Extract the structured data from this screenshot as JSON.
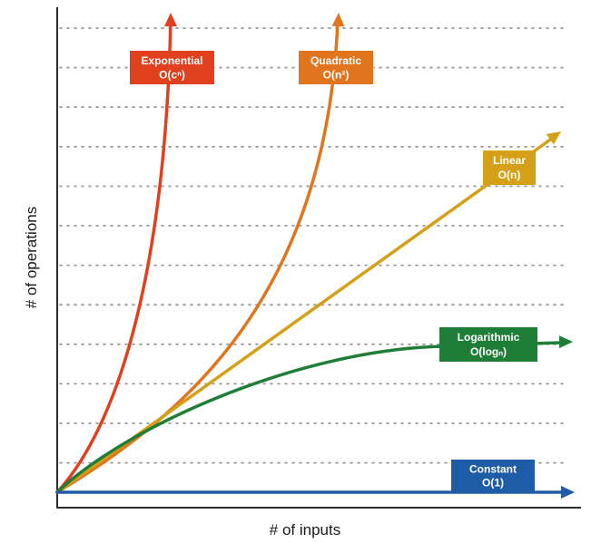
{
  "chart_data": {
    "type": "line",
    "title": "",
    "xlabel": "# of inputs",
    "ylabel": "# of operations",
    "grid": true,
    "grid_style": "dotted-horizontal",
    "x_ticks_shown": false,
    "y_ticks_shown": false,
    "series": [
      {
        "key": "exponential",
        "name_line1": "Exponential",
        "name_line2": "O(cⁿ)",
        "color": "#e0401e",
        "shape": "exponential",
        "growth_rank": 1
      },
      {
        "key": "quadratic",
        "name_line1": "Quadratic",
        "name_line2": "O(n²)",
        "color": "#e0751e",
        "shape": "quadratic",
        "growth_rank": 2
      },
      {
        "key": "linear",
        "name_line1": "Linear",
        "name_line2": "O(n)",
        "color": "#d4a017",
        "shape": "linear",
        "growth_rank": 3
      },
      {
        "key": "logarithmic",
        "name_line1": "Logarithmic",
        "name_line2": "O(logₙ)",
        "color": "#1e7d36",
        "shape": "logarithmic",
        "growth_rank": 4
      },
      {
        "key": "constant",
        "name_line1": "Constant",
        "name_line2": "O(1)",
        "color": "#1f5ca8",
        "shape": "constant",
        "growth_rank": 5
      }
    ]
  }
}
